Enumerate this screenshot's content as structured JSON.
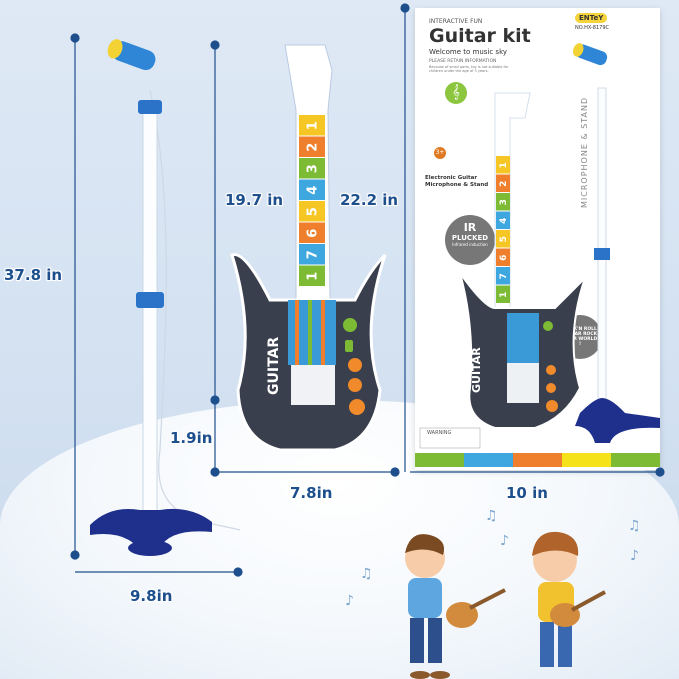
{
  "dimensions": {
    "stand_height": "37.8 in",
    "stand_base_width": "9.8in",
    "guitar_length": "19.7 in",
    "box_height": "22.2 in",
    "guitar_depth": "1.9in",
    "guitar_width": "7.8in",
    "box_width": "10 in"
  },
  "guitar": {
    "fret_numbers": [
      "1",
      "2",
      "3",
      "4",
      "5",
      "6",
      "7",
      "1"
    ],
    "fret_colors": [
      "#f6c624",
      "#ef7f2d",
      "#7dbb35",
      "#3fa7df",
      "#f6c624",
      "#ef7f2d",
      "#3fa7df",
      "#7dbb35"
    ],
    "body_label": "GUITAR"
  },
  "package": {
    "tagline": "INTERACTIVE FUN",
    "title": "Guitar kit",
    "subtitle": "Welcome to music sky",
    "notice_title": "PLEASE RETAIN INFORMATION",
    "notice_text": "Because of small parts, toy is not suitable for children under the age of 3 years.",
    "brand": "ENTeY",
    "model": "NO.HX-8179C",
    "age_badge": "3+",
    "product_name_line1": "Electronic Guitar",
    "product_name_line2": "Microphone & Stand",
    "side_text": "MICROPHONE & STAND",
    "badge_ir": "IR",
    "badge_plucked": "PLUCKED",
    "badge_infrared": "Infrared induction",
    "rock_badge": "ROCK'N ROLL GUITAR ROCK YOUR WORLD !",
    "warning": "WARNING",
    "stripe_colors": [
      "#7dbb35",
      "#3fa7df",
      "#ef7f2d",
      "#f6e21a",
      "#7dbb35"
    ]
  },
  "colors": {
    "dimension_line": "#1e4f8d",
    "stand_blue": "#2a73c9",
    "base_navy": "#1f2f8c",
    "guitar_body": "#3a3f4d"
  }
}
